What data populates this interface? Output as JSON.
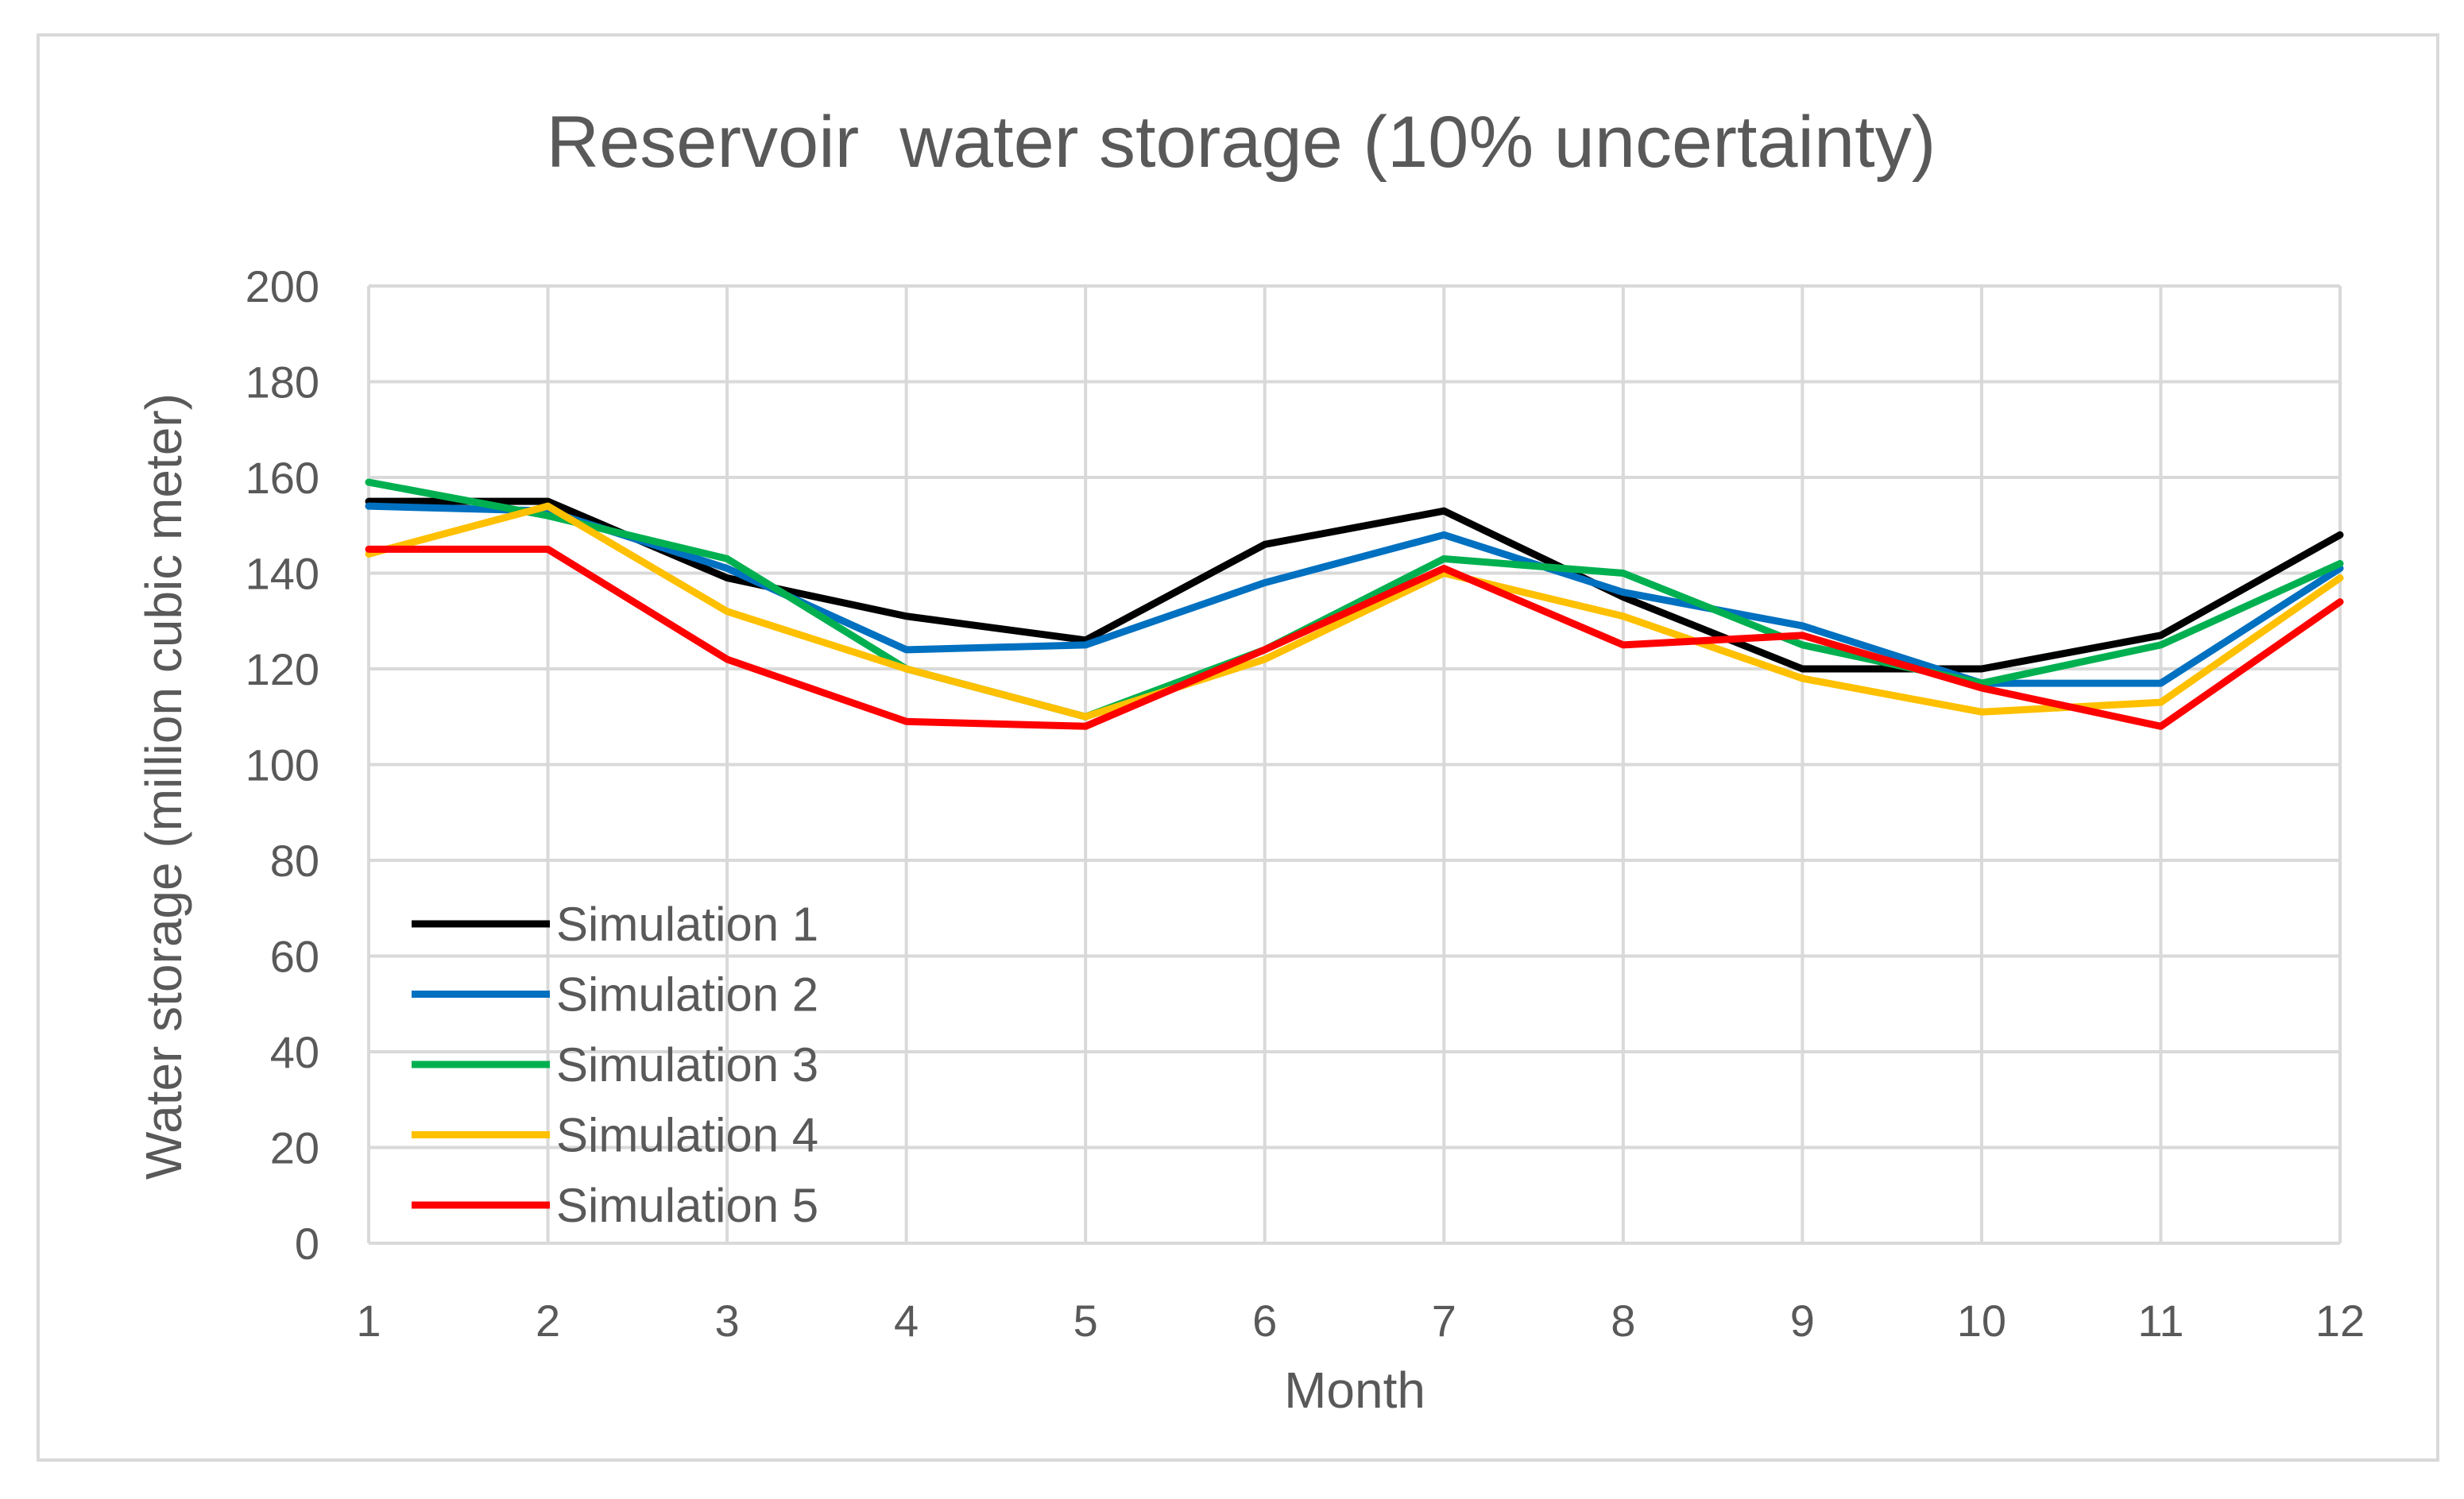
{
  "chart_data": {
    "type": "line",
    "title": "Reservoir  water storage (10% uncertainty)",
    "xlabel": "Month",
    "ylabel": "Water storage (million cubic meter)",
    "categories": [
      "1",
      "2",
      "3",
      "4",
      "5",
      "6",
      "7",
      "8",
      "9",
      "10",
      "11",
      "12"
    ],
    "x": [
      1,
      2,
      3,
      4,
      5,
      6,
      7,
      8,
      9,
      10,
      11,
      12
    ],
    "ylim": [
      0,
      200
    ],
    "yticks": [
      "0",
      "20",
      "40",
      "60",
      "80",
      "100",
      "120",
      "140",
      "160",
      "180",
      "200"
    ],
    "grid": true,
    "legend_position": "bottom-left",
    "series": [
      {
        "name": "Simulation 1",
        "color": "#000000",
        "values": [
          155,
          155,
          139,
          131,
          126,
          146,
          153,
          135,
          120,
          120,
          127,
          148
        ]
      },
      {
        "name": "Simulation 2",
        "color": "#0070c0",
        "values": [
          154,
          153,
          141,
          124,
          125,
          138,
          148,
          136,
          129,
          117,
          117,
          141
        ]
      },
      {
        "name": "Simulation 3",
        "color": "#00b050",
        "values": [
          159,
          152,
          143,
          120,
          110,
          124,
          143,
          140,
          125,
          117,
          125,
          142
        ]
      },
      {
        "name": "Simulation 4",
        "color": "#ffc000",
        "values": [
          144,
          154,
          132,
          120,
          110,
          122,
          140,
          131,
          118,
          111,
          113,
          139
        ]
      },
      {
        "name": "Simulation 5",
        "color": "#ff0000",
        "values": [
          145,
          145,
          122,
          109,
          108,
          124,
          141,
          125,
          127,
          116,
          108,
          134
        ]
      }
    ]
  }
}
